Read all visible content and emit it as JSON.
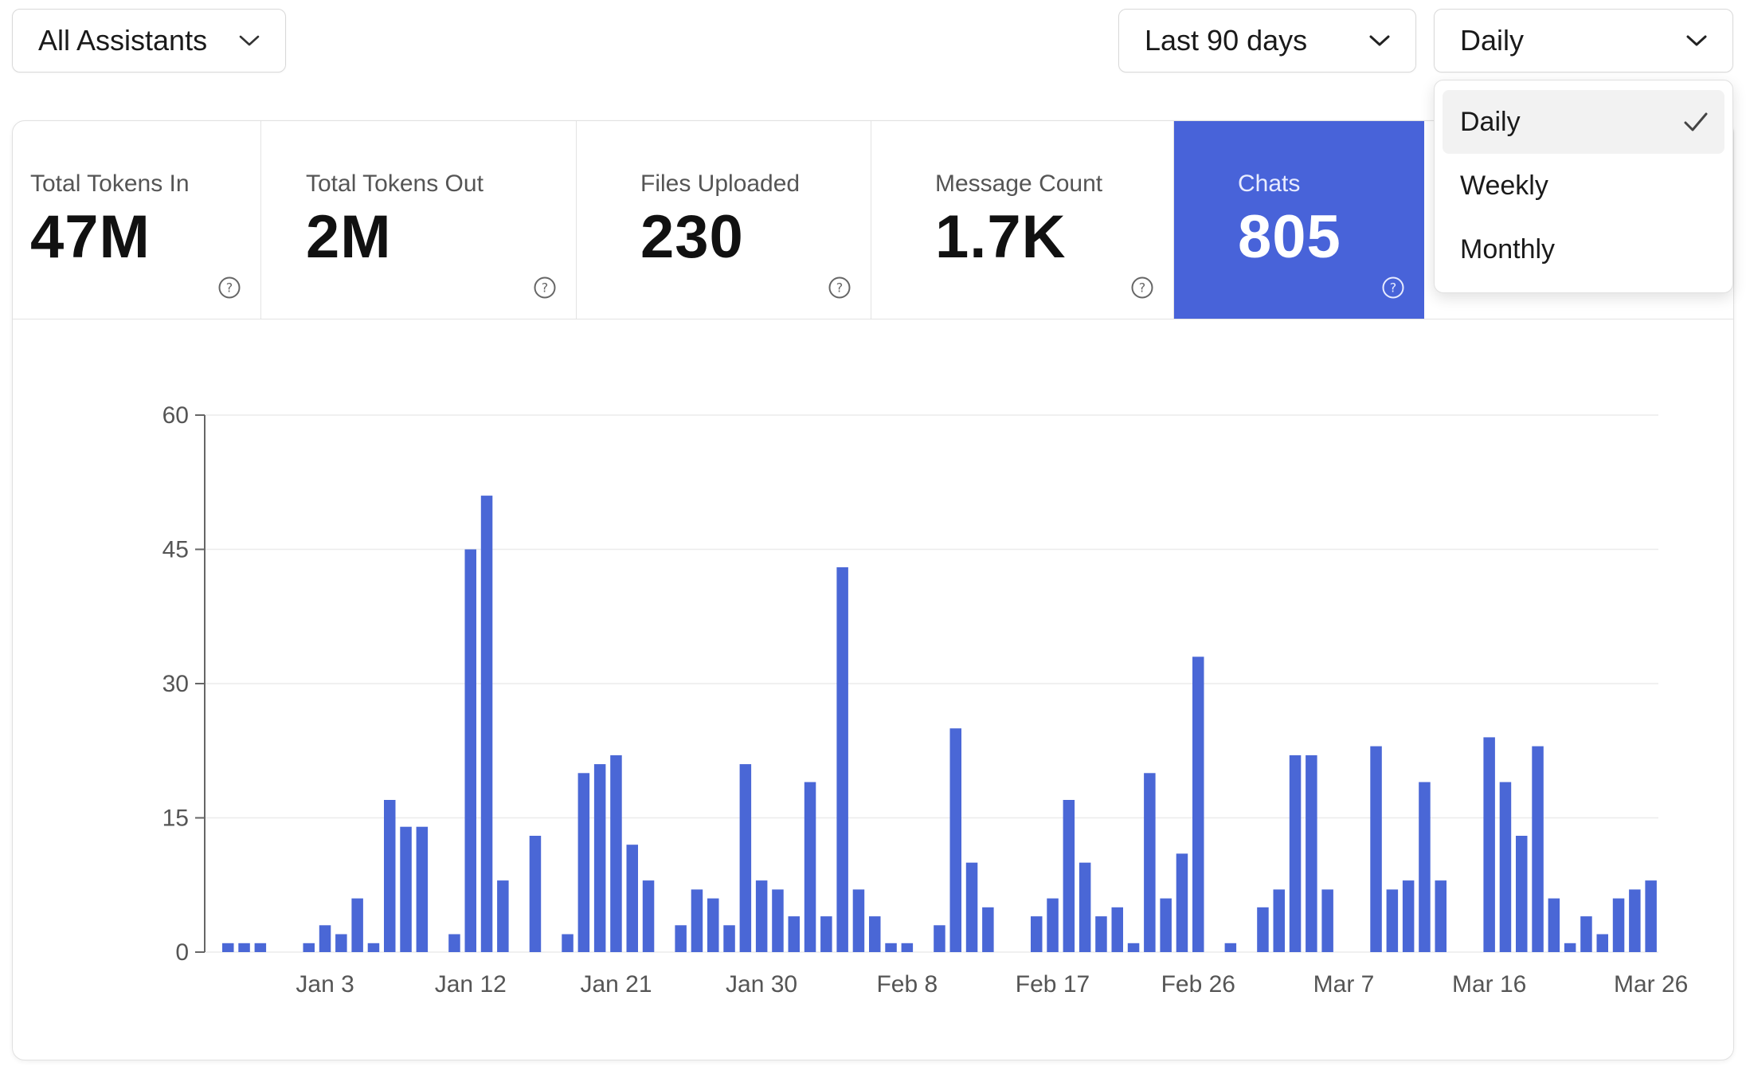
{
  "filters": {
    "assistant": "All Assistants",
    "range": "Last 90 days",
    "granularity": "Daily"
  },
  "granularity_menu": {
    "options": [
      "Daily",
      "Weekly",
      "Monthly"
    ],
    "selected": "Daily"
  },
  "stats": [
    {
      "label": "Total Tokens In",
      "value": "47M"
    },
    {
      "label": "Total Tokens Out",
      "value": "2M"
    },
    {
      "label": "Files Uploaded",
      "value": "230"
    },
    {
      "label": "Message Count",
      "value": "1.7K"
    },
    {
      "label": "Chats",
      "value": "805"
    }
  ],
  "active_stat": "Chats",
  "colors": {
    "accent": "#4863d9",
    "bar": "#4a67d6",
    "grid": "#ececec",
    "axis": "#555555"
  },
  "chart_data": {
    "type": "bar",
    "title": "",
    "xlabel": "",
    "ylabel": "",
    "ylim": [
      0,
      60
    ],
    "yticks": [
      0,
      15,
      30,
      45,
      60
    ],
    "xtick_labels": [
      "Jan 3",
      "Jan 12",
      "Jan 21",
      "Jan 30",
      "Feb 8",
      "Feb 17",
      "Feb 26",
      "Mar 7",
      "Mar 16",
      "Mar 26"
    ],
    "xtick_indices": [
      6,
      15,
      24,
      33,
      42,
      51,
      60,
      69,
      78,
      88
    ],
    "series": [
      {
        "name": "Chats",
        "values": [
          1,
          1,
          1,
          0,
          0,
          1,
          3,
          2,
          6,
          1,
          17,
          14,
          14,
          0,
          2,
          45,
          51,
          8,
          0,
          13,
          0,
          2,
          20,
          21,
          22,
          12,
          8,
          0,
          3,
          7,
          6,
          3,
          21,
          8,
          7,
          4,
          19,
          4,
          43,
          7,
          4,
          1,
          1,
          0,
          3,
          25,
          10,
          5,
          0,
          0,
          4,
          6,
          17,
          10,
          4,
          5,
          1,
          20,
          6,
          11,
          33,
          0,
          1,
          0,
          5,
          7,
          22,
          22,
          7,
          0,
          0,
          23,
          7,
          8,
          19,
          8,
          0,
          0,
          24,
          19,
          13,
          23,
          6,
          1,
          4,
          2,
          6,
          7,
          8
        ]
      }
    ]
  }
}
